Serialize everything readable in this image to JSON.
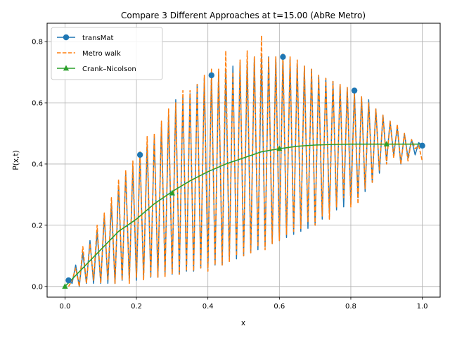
{
  "chart_data": {
    "type": "line",
    "title": "Compare 3 Different Approaches at t=15.00 (AbRe Metro)",
    "xlabel": "x",
    "ylabel": "P(x,t)",
    "xlim": [
      -0.05,
      1.05
    ],
    "ylim": [
      -0.035,
      0.86
    ],
    "xticks": [
      "0.0",
      "0.2",
      "0.4",
      "0.6",
      "0.8",
      "1.0"
    ],
    "yticks": [
      "0.0",
      "0.2",
      "0.4",
      "0.6",
      "0.8"
    ],
    "grid": true,
    "legend_position": "top-left",
    "colors": {
      "transMat": "#1f77b4",
      "metro": "#ff7f0e",
      "crank": "#2ca02c"
    },
    "series": [
      {
        "name": "transMat",
        "style": "solid line, circle markers",
        "x": [
          0.01,
          0.02,
          0.03,
          0.04,
          0.05,
          0.06,
          0.07,
          0.08,
          0.09,
          0.1,
          0.11,
          0.12,
          0.13,
          0.14,
          0.15,
          0.16,
          0.17,
          0.18,
          0.19,
          0.2,
          0.21,
          0.22,
          0.23,
          0.24,
          0.25,
          0.26,
          0.27,
          0.28,
          0.29,
          0.3,
          0.31,
          0.32,
          0.33,
          0.34,
          0.35,
          0.36,
          0.37,
          0.38,
          0.39,
          0.4,
          0.41,
          0.42,
          0.43,
          0.44,
          0.45,
          0.46,
          0.47,
          0.48,
          0.49,
          0.5,
          0.51,
          0.52,
          0.53,
          0.54,
          0.55,
          0.56,
          0.57,
          0.58,
          0.59,
          0.6,
          0.61,
          0.62,
          0.63,
          0.64,
          0.65,
          0.66,
          0.67,
          0.68,
          0.69,
          0.7,
          0.71,
          0.72,
          0.73,
          0.74,
          0.75,
          0.76,
          0.77,
          0.78,
          0.79,
          0.8,
          0.81,
          0.82,
          0.83,
          0.84,
          0.85,
          0.86,
          0.87,
          0.88,
          0.89,
          0.9,
          0.91,
          0.92,
          0.93,
          0.94,
          0.95,
          0.96,
          0.97,
          0.98,
          0.99,
          1.0
        ],
        "y": [
          0.02,
          0.01,
          0.07,
          0.0,
          0.11,
          0.01,
          0.15,
          0.01,
          0.18,
          0.01,
          0.23,
          0.01,
          0.27,
          0.01,
          0.33,
          0.02,
          0.37,
          0.02,
          0.39,
          0.02,
          0.43,
          0.03,
          0.46,
          0.03,
          0.49,
          0.03,
          0.53,
          0.04,
          0.56,
          0.04,
          0.61,
          0.04,
          0.62,
          0.05,
          0.63,
          0.05,
          0.66,
          0.06,
          0.68,
          0.06,
          0.69,
          0.07,
          0.7,
          0.07,
          0.71,
          0.09,
          0.72,
          0.09,
          0.73,
          0.1,
          0.73,
          0.11,
          0.75,
          0.12,
          0.75,
          0.13,
          0.75,
          0.14,
          0.75,
          0.15,
          0.75,
          0.16,
          0.74,
          0.17,
          0.73,
          0.18,
          0.72,
          0.19,
          0.71,
          0.2,
          0.69,
          0.22,
          0.68,
          0.24,
          0.67,
          0.25,
          0.66,
          0.26,
          0.65,
          0.27,
          0.64,
          0.29,
          0.62,
          0.31,
          0.61,
          0.34,
          0.58,
          0.37,
          0.56,
          0.41,
          0.54,
          0.43,
          0.52,
          0.4,
          0.5,
          0.42,
          0.48,
          0.43,
          0.47,
          0.46
        ]
      },
      {
        "name": "Metro walk",
        "style": "dashed line",
        "x": [
          0.01,
          0.02,
          0.03,
          0.04,
          0.05,
          0.06,
          0.07,
          0.08,
          0.09,
          0.1,
          0.11,
          0.12,
          0.13,
          0.14,
          0.15,
          0.16,
          0.17,
          0.18,
          0.19,
          0.2,
          0.21,
          0.22,
          0.23,
          0.24,
          0.25,
          0.26,
          0.27,
          0.28,
          0.29,
          0.3,
          0.31,
          0.32,
          0.33,
          0.34,
          0.35,
          0.36,
          0.37,
          0.38,
          0.39,
          0.4,
          0.41,
          0.42,
          0.43,
          0.44,
          0.45,
          0.46,
          0.47,
          0.48,
          0.49,
          0.5,
          0.51,
          0.52,
          0.53,
          0.54,
          0.55,
          0.56,
          0.57,
          0.58,
          0.59,
          0.6,
          0.61,
          0.62,
          0.63,
          0.64,
          0.65,
          0.66,
          0.67,
          0.68,
          0.69,
          0.7,
          0.71,
          0.72,
          0.73,
          0.74,
          0.75,
          0.76,
          0.77,
          0.78,
          0.79,
          0.8,
          0.81,
          0.82,
          0.83,
          0.84,
          0.85,
          0.86,
          0.87,
          0.88,
          0.89,
          0.9,
          0.91,
          0.92,
          0.93,
          0.94,
          0.95,
          0.96,
          0.97,
          0.98,
          0.99,
          1.0
        ],
        "y": [
          0.0,
          0.02,
          0.06,
          0.0,
          0.13,
          0.01,
          0.14,
          0.02,
          0.2,
          0.01,
          0.24,
          0.02,
          0.29,
          0.01,
          0.35,
          0.02,
          0.38,
          0.01,
          0.41,
          0.03,
          0.44,
          0.02,
          0.49,
          0.03,
          0.5,
          0.03,
          0.54,
          0.03,
          0.58,
          0.04,
          0.6,
          0.04,
          0.64,
          0.05,
          0.64,
          0.05,
          0.66,
          0.06,
          0.69,
          0.05,
          0.71,
          0.07,
          0.71,
          0.07,
          0.77,
          0.08,
          0.7,
          0.1,
          0.74,
          0.1,
          0.77,
          0.11,
          0.75,
          0.13,
          0.82,
          0.12,
          0.75,
          0.14,
          0.75,
          0.15,
          0.76,
          0.17,
          0.75,
          0.18,
          0.74,
          0.19,
          0.72,
          0.21,
          0.71,
          0.2,
          0.69,
          0.23,
          0.68,
          0.22,
          0.67,
          0.26,
          0.66,
          0.29,
          0.65,
          0.26,
          0.63,
          0.27,
          0.62,
          0.32,
          0.6,
          0.34,
          0.58,
          0.38,
          0.56,
          0.4,
          0.54,
          0.42,
          0.53,
          0.4,
          0.5,
          0.41,
          0.48,
          0.45,
          0.46,
          0.41
        ]
      },
      {
        "name": "Crank–Nicolson",
        "style": "solid line, triangle markers",
        "x": [
          0.0,
          0.05,
          0.1,
          0.15,
          0.2,
          0.25,
          0.3,
          0.35,
          0.4,
          0.45,
          0.5,
          0.55,
          0.6,
          0.65,
          0.7,
          0.75,
          0.8,
          0.85,
          0.9,
          0.95,
          1.0
        ],
        "y": [
          0.0,
          0.06,
          0.12,
          0.18,
          0.22,
          0.27,
          0.31,
          0.345,
          0.375,
          0.4,
          0.42,
          0.44,
          0.45,
          0.458,
          0.462,
          0.464,
          0.465,
          0.465,
          0.465,
          0.465,
          0.465
        ]
      }
    ],
    "markers": {
      "transMat": {
        "x": [
          0.01,
          0.21,
          0.41,
          0.61,
          0.81,
          1.0
        ],
        "y": [
          0.02,
          0.43,
          0.69,
          0.75,
          0.64,
          0.46
        ]
      },
      "Crank–Nicolson": {
        "x": [
          0.0,
          0.3,
          0.6,
          0.9
        ],
        "y": [
          0.0,
          0.305,
          0.45,
          0.465
        ]
      }
    }
  }
}
